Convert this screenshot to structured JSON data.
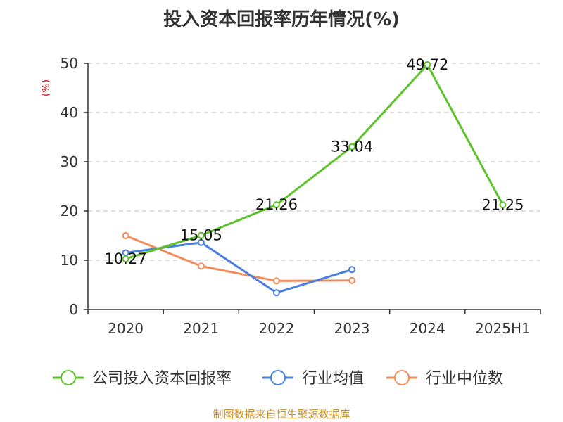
{
  "chart_data": {
    "type": "line",
    "title": "投入资本回报率历年情况(%)",
    "ylabel": "(%)",
    "categories": [
      "2020",
      "2021",
      "2022",
      "2023",
      "2024",
      "2025H1"
    ],
    "ylim": [
      0,
      50
    ],
    "yticks": [
      "0",
      "10",
      "20",
      "30",
      "40",
      "50"
    ],
    "grid": true,
    "legend_position": "bottom",
    "series": [
      {
        "name": "公司投入资本回报率",
        "color": "#5ec32a",
        "values": [
          10.27,
          15.05,
          21.26,
          33.04,
          49.72,
          21.25
        ],
        "labels": [
          "10.27",
          "15.05",
          "21.26",
          "33.04",
          "49.72",
          "21.25"
        ]
      },
      {
        "name": "行业均值",
        "color": "#4a7fdb",
        "values": [
          11.5,
          13.6,
          3.4,
          8.1,
          null,
          null
        ]
      },
      {
        "name": "行业中位数",
        "color": "#f28c5a",
        "values": [
          15.0,
          8.8,
          5.8,
          5.9,
          null,
          null
        ]
      }
    ]
  },
  "source": "制图数据来自恒生聚源数据库"
}
